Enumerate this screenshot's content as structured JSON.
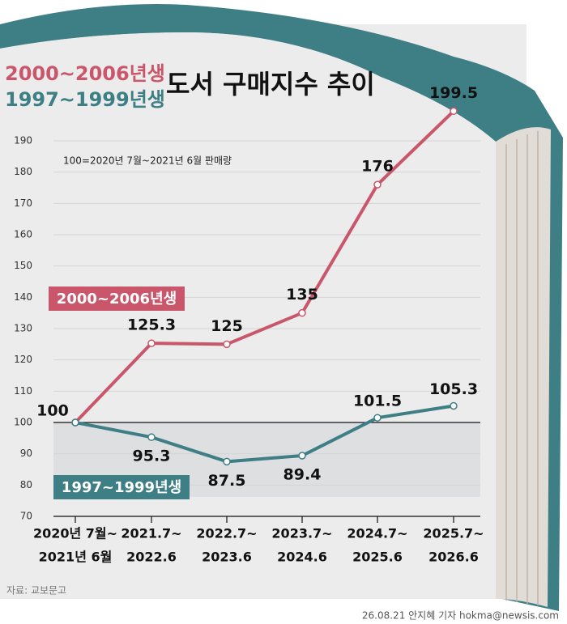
{
  "chart_data": {
    "type": "line",
    "title": "도서 구매지수 추이",
    "subtitle": "100=2020년 7월~2021년 6월 판매량",
    "categories": [
      [
        "2020년 7월~",
        "2021년 6월"
      ],
      [
        "2021.7~",
        "2022.6"
      ],
      [
        "2022.7~",
        "2023.6"
      ],
      [
        "2023.7~",
        "2024.6"
      ],
      [
        "2024.7~",
        "2025.6"
      ],
      [
        "2025.7~",
        "2026.6"
      ]
    ],
    "series": [
      {
        "name": "2000~2006년생",
        "color": "#c9566b",
        "values": [
          100,
          125.3,
          125,
          135,
          176,
          199.5
        ]
      },
      {
        "name": "1997~1999년생",
        "color": "#3e7f86",
        "values": [
          100,
          95.3,
          87.5,
          89.4,
          101.5,
          105.3
        ]
      }
    ],
    "ylim": [
      70,
      190
    ],
    "yticks": [
      70,
      80,
      90,
      100,
      110,
      120,
      130,
      140,
      150,
      160,
      170,
      180,
      190
    ],
    "reference_line": 100,
    "grid": true,
    "source": "자료: 교보문고",
    "credit": "26.08.21 안지혜 기자 hokma@newsis.com"
  }
}
